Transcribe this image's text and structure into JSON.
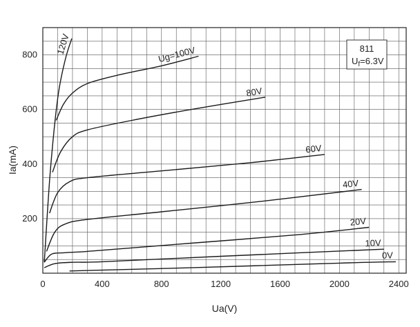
{
  "chart_data": {
    "type": "line",
    "title": "",
    "xlabel": "Ua(V)",
    "ylabel": "Ia(mA)",
    "xlim": [
      0,
      2450
    ],
    "ylim": [
      0,
      900
    ],
    "x_ticks": [
      "0",
      "400",
      "800",
      "1200",
      "1600",
      "2000",
      "2400"
    ],
    "y_ticks": [
      "200",
      "400",
      "600",
      "800"
    ],
    "grid": true,
    "legend": "none",
    "info_box": {
      "tube": "811",
      "filament_prefix": "U",
      "filament_sub": "f",
      "filament_value": "=6.3V"
    },
    "series": [
      {
        "name": "120V",
        "x": [
          10,
          50,
          100,
          150,
          195
        ],
        "y": [
          40,
          370,
          640,
          780,
          860
        ]
      },
      {
        "name": "Ug=100V",
        "x": [
          90,
          140,
          200,
          300,
          500,
          800,
          1050
        ],
        "y": [
          560,
          620,
          660,
          695,
          725,
          760,
          795
        ]
      },
      {
        "name": "80V",
        "x": [
          65,
          120,
          200,
          300,
          600,
          1000,
          1500
        ],
        "y": [
          370,
          445,
          500,
          525,
          560,
          600,
          645
        ]
      },
      {
        "name": "60V",
        "x": [
          45,
          100,
          180,
          300,
          800,
          1400,
          1900
        ],
        "y": [
          220,
          295,
          335,
          350,
          375,
          405,
          435
        ]
      },
      {
        "name": "40V",
        "x": [
          25,
          80,
          150,
          300,
          800,
          1500,
          2150
        ],
        "y": [
          80,
          150,
          180,
          197,
          225,
          265,
          307
        ]
      },
      {
        "name": "20V",
        "x": [
          10,
          60,
          150,
          350,
          1000,
          1700,
          2200
        ],
        "y": [
          40,
          70,
          75,
          82,
          110,
          140,
          168
        ]
      },
      {
        "name": "10V",
        "x": [
          10,
          80,
          200,
          400,
          1200,
          2300
        ],
        "y": [
          20,
          35,
          40,
          42,
          62,
          88
        ]
      },
      {
        "name": "0V",
        "x": [
          180,
          1000,
          2000,
          2380
        ],
        "y": [
          8,
          20,
          37,
          42
        ]
      }
    ]
  }
}
